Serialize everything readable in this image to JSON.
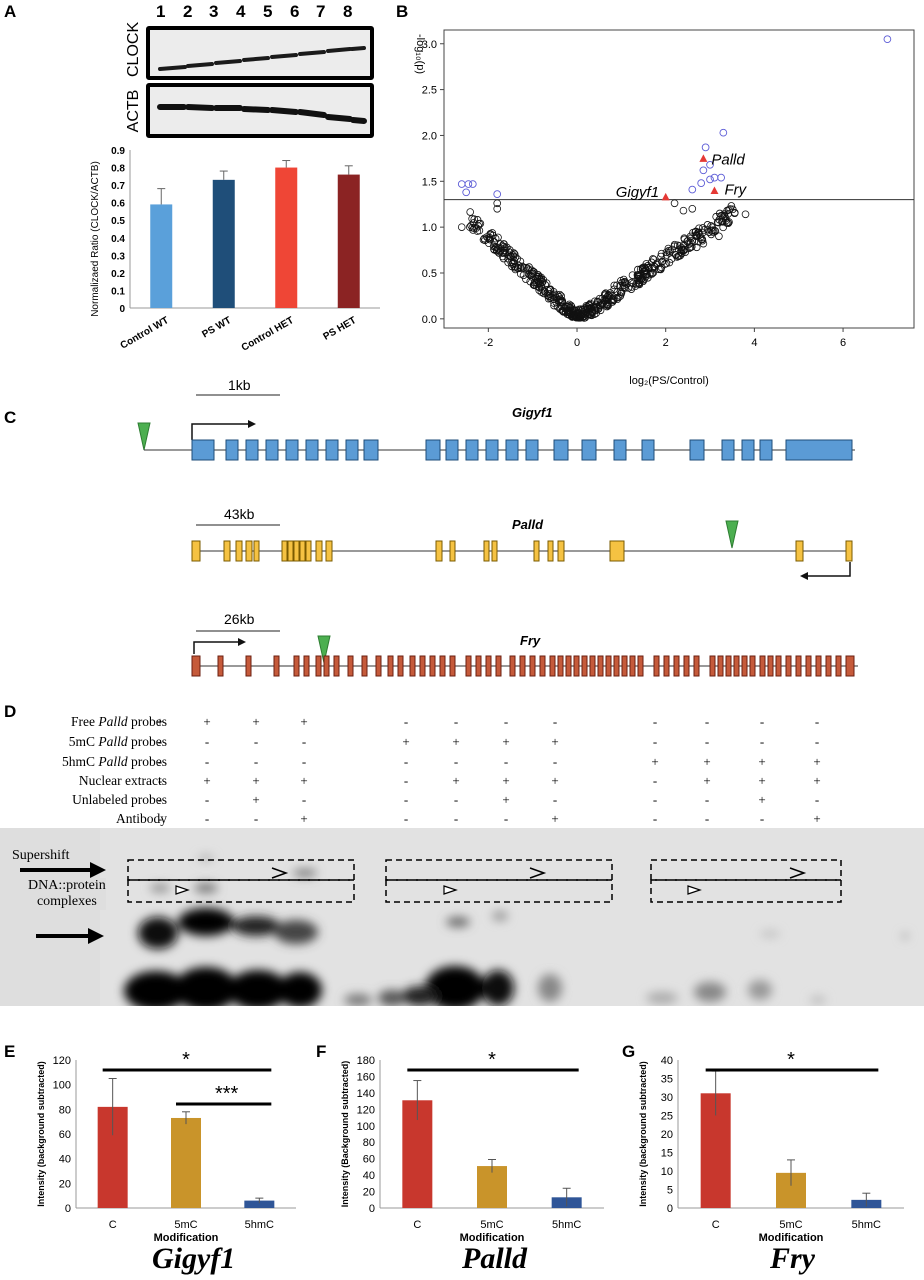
{
  "panels": [
    "A",
    "B",
    "C",
    "D",
    "E",
    "F",
    "G"
  ],
  "panelA": {
    "lanes": [
      "1",
      "2",
      "3",
      "4",
      "5",
      "6",
      "7",
      "8"
    ],
    "blot_labels": [
      "CLOCK",
      "ACTB"
    ],
    "chart_data": {
      "type": "bar",
      "categories": [
        "Control WT",
        "PS WT",
        "Control HET",
        "PS HET"
      ],
      "values": [
        0.59,
        0.73,
        0.8,
        0.76
      ],
      "errors": [
        0.09,
        0.05,
        0.04,
        0.05
      ],
      "colors": [
        "#5aa0da",
        "#1f4e79",
        "#ef4636",
        "#8b2323"
      ],
      "ylabel": "Normalizaed Ratio (CLOCK/ACTB)",
      "ylim": [
        0,
        0.9
      ],
      "yticks": [
        "0",
        "0.1",
        "0.2",
        "0.3",
        "0.4",
        "0.5",
        "0.6",
        "0.7",
        "0.8",
        "0.9"
      ]
    }
  },
  "panelB": {
    "chart_data": {
      "type": "scatter",
      "xlabel": "log₂(PS/Control)",
      "ylabel": "-log₁₀(p)",
      "xlim": [
        -3,
        7.6
      ],
      "ylim": [
        -0.1,
        3.15
      ],
      "xticks": [
        "-2",
        "0",
        "2",
        "4",
        "6"
      ],
      "yticks": [
        "0.0",
        "0.5",
        "1.0",
        "1.5",
        "2.0",
        "2.5",
        "3.0"
      ],
      "threshold": 1.3,
      "highlighted": [
        {
          "name": "Palld",
          "x": 2.85,
          "y": 1.75
        },
        {
          "name": "Gigyf1",
          "x": 2.0,
          "y": 1.33
        },
        {
          "name": "Fry",
          "x": 3.1,
          "y": 1.4
        }
      ],
      "significant_points": [
        [
          -2.6,
          1.47
        ],
        [
          -2.5,
          1.38
        ],
        [
          -2.45,
          1.47
        ],
        [
          -2.35,
          1.47
        ],
        [
          -1.8,
          1.36
        ],
        [
          7.0,
          3.05
        ],
        [
          3.3,
          2.03
        ],
        [
          2.9,
          1.87
        ],
        [
          3.0,
          1.68
        ],
        [
          2.8,
          1.48
        ],
        [
          3.1,
          1.54
        ],
        [
          3.25,
          1.54
        ],
        [
          2.85,
          1.62
        ],
        [
          2.6,
          1.41
        ],
        [
          3.0,
          1.52
        ]
      ]
    }
  },
  "panelC": {
    "genes": [
      {
        "name": "Gigyf1",
        "scale": "1kb"
      },
      {
        "name": "Palld",
        "scale": "43kb"
      },
      {
        "name": "Fry",
        "scale": "26kb"
      }
    ]
  },
  "panelD": {
    "rows": [
      {
        "pre": "Free ",
        "it": "Palld",
        "post": " probes"
      },
      {
        "pre": "5mC ",
        "it": "Palld",
        "post": " probes"
      },
      {
        "pre": "5hmC ",
        "it": "Palld",
        "post": " probes"
      },
      {
        "pre": "Nuclear extracts",
        "it": "",
        "post": ""
      },
      {
        "pre": "Unlabeled probes",
        "it": "",
        "post": ""
      },
      {
        "pre": "Antibody",
        "it": "",
        "post": ""
      }
    ],
    "grid": [
      [
        "+",
        "+",
        "+",
        "+",
        "-",
        "-",
        "-",
        "-",
        "-",
        "-",
        "-",
        "-"
      ],
      [
        "-",
        "-",
        "-",
        "-",
        "+",
        "+",
        "+",
        "+",
        "-",
        "-",
        "-",
        "-"
      ],
      [
        "-",
        "-",
        "-",
        "-",
        "-",
        "-",
        "-",
        "-",
        "+",
        "+",
        "+",
        "+"
      ],
      [
        "-",
        "+",
        "+",
        "+",
        "-",
        "+",
        "+",
        "+",
        "-",
        "+",
        "+",
        "+"
      ],
      [
        "-",
        "-",
        "+",
        "-",
        "-",
        "-",
        "+",
        "-",
        "-",
        "-",
        "+",
        "-"
      ],
      [
        "-",
        "-",
        "-",
        "+",
        "-",
        "-",
        "-",
        "+",
        "-",
        "-",
        "-",
        "+"
      ]
    ],
    "gel_labels": {
      "supershift": "Supershift",
      "complex_line1": "DNA::protein",
      "complex_line2": "complexes"
    }
  },
  "panelE": {
    "title": "Gigyf1",
    "chart_data": {
      "type": "bar",
      "categories": [
        "C",
        "5mC",
        "5hmC"
      ],
      "values": [
        82,
        73,
        6
      ],
      "errors": [
        23,
        5,
        2
      ],
      "colors": [
        "#c8372d",
        "#c9942a",
        "#2f5597"
      ],
      "ylabel": "Intensity (background subtracted)",
      "xlabel": "Modification",
      "ylim": [
        0,
        120
      ],
      "yticks": [
        "0",
        "20",
        "40",
        "60",
        "80",
        "100",
        "120"
      ],
      "sig": [
        {
          "label": "*",
          "from": 0,
          "to": 2
        },
        {
          "label": "***",
          "from": 1,
          "to": 2
        }
      ]
    }
  },
  "panelF": {
    "title": "Palld",
    "chart_data": {
      "type": "bar",
      "categories": [
        "C",
        "5mC",
        "5hmC"
      ],
      "values": [
        131,
        51,
        13
      ],
      "errors": [
        24,
        8,
        11
      ],
      "colors": [
        "#c8372d",
        "#c9942a",
        "#2f5597"
      ],
      "ylabel": "Intensity (Background subtracted)",
      "xlabel": "Modification",
      "ylim": [
        0,
        180
      ],
      "yticks": [
        "0",
        "20",
        "40",
        "60",
        "80",
        "100",
        "120",
        "140",
        "160",
        "180"
      ],
      "sig": [
        {
          "label": "*",
          "from": 0,
          "to": 2
        }
      ]
    }
  },
  "panelG": {
    "title": "Fry",
    "chart_data": {
      "type": "bar",
      "categories": [
        "C",
        "5mC",
        "5hmC"
      ],
      "values": [
        31,
        9.5,
        2.2
      ],
      "errors": [
        6,
        3.5,
        1.8
      ],
      "colors": [
        "#c8372d",
        "#c9942a",
        "#2f5597"
      ],
      "ylabel": "Intensity (background subtracted)",
      "xlabel": "Modification",
      "ylim": [
        0,
        40
      ],
      "yticks": [
        "0",
        "5",
        "10",
        "15",
        "20",
        "25",
        "30",
        "35",
        "40"
      ],
      "sig": [
        {
          "label": "*",
          "from": 0,
          "to": 2
        }
      ]
    }
  }
}
